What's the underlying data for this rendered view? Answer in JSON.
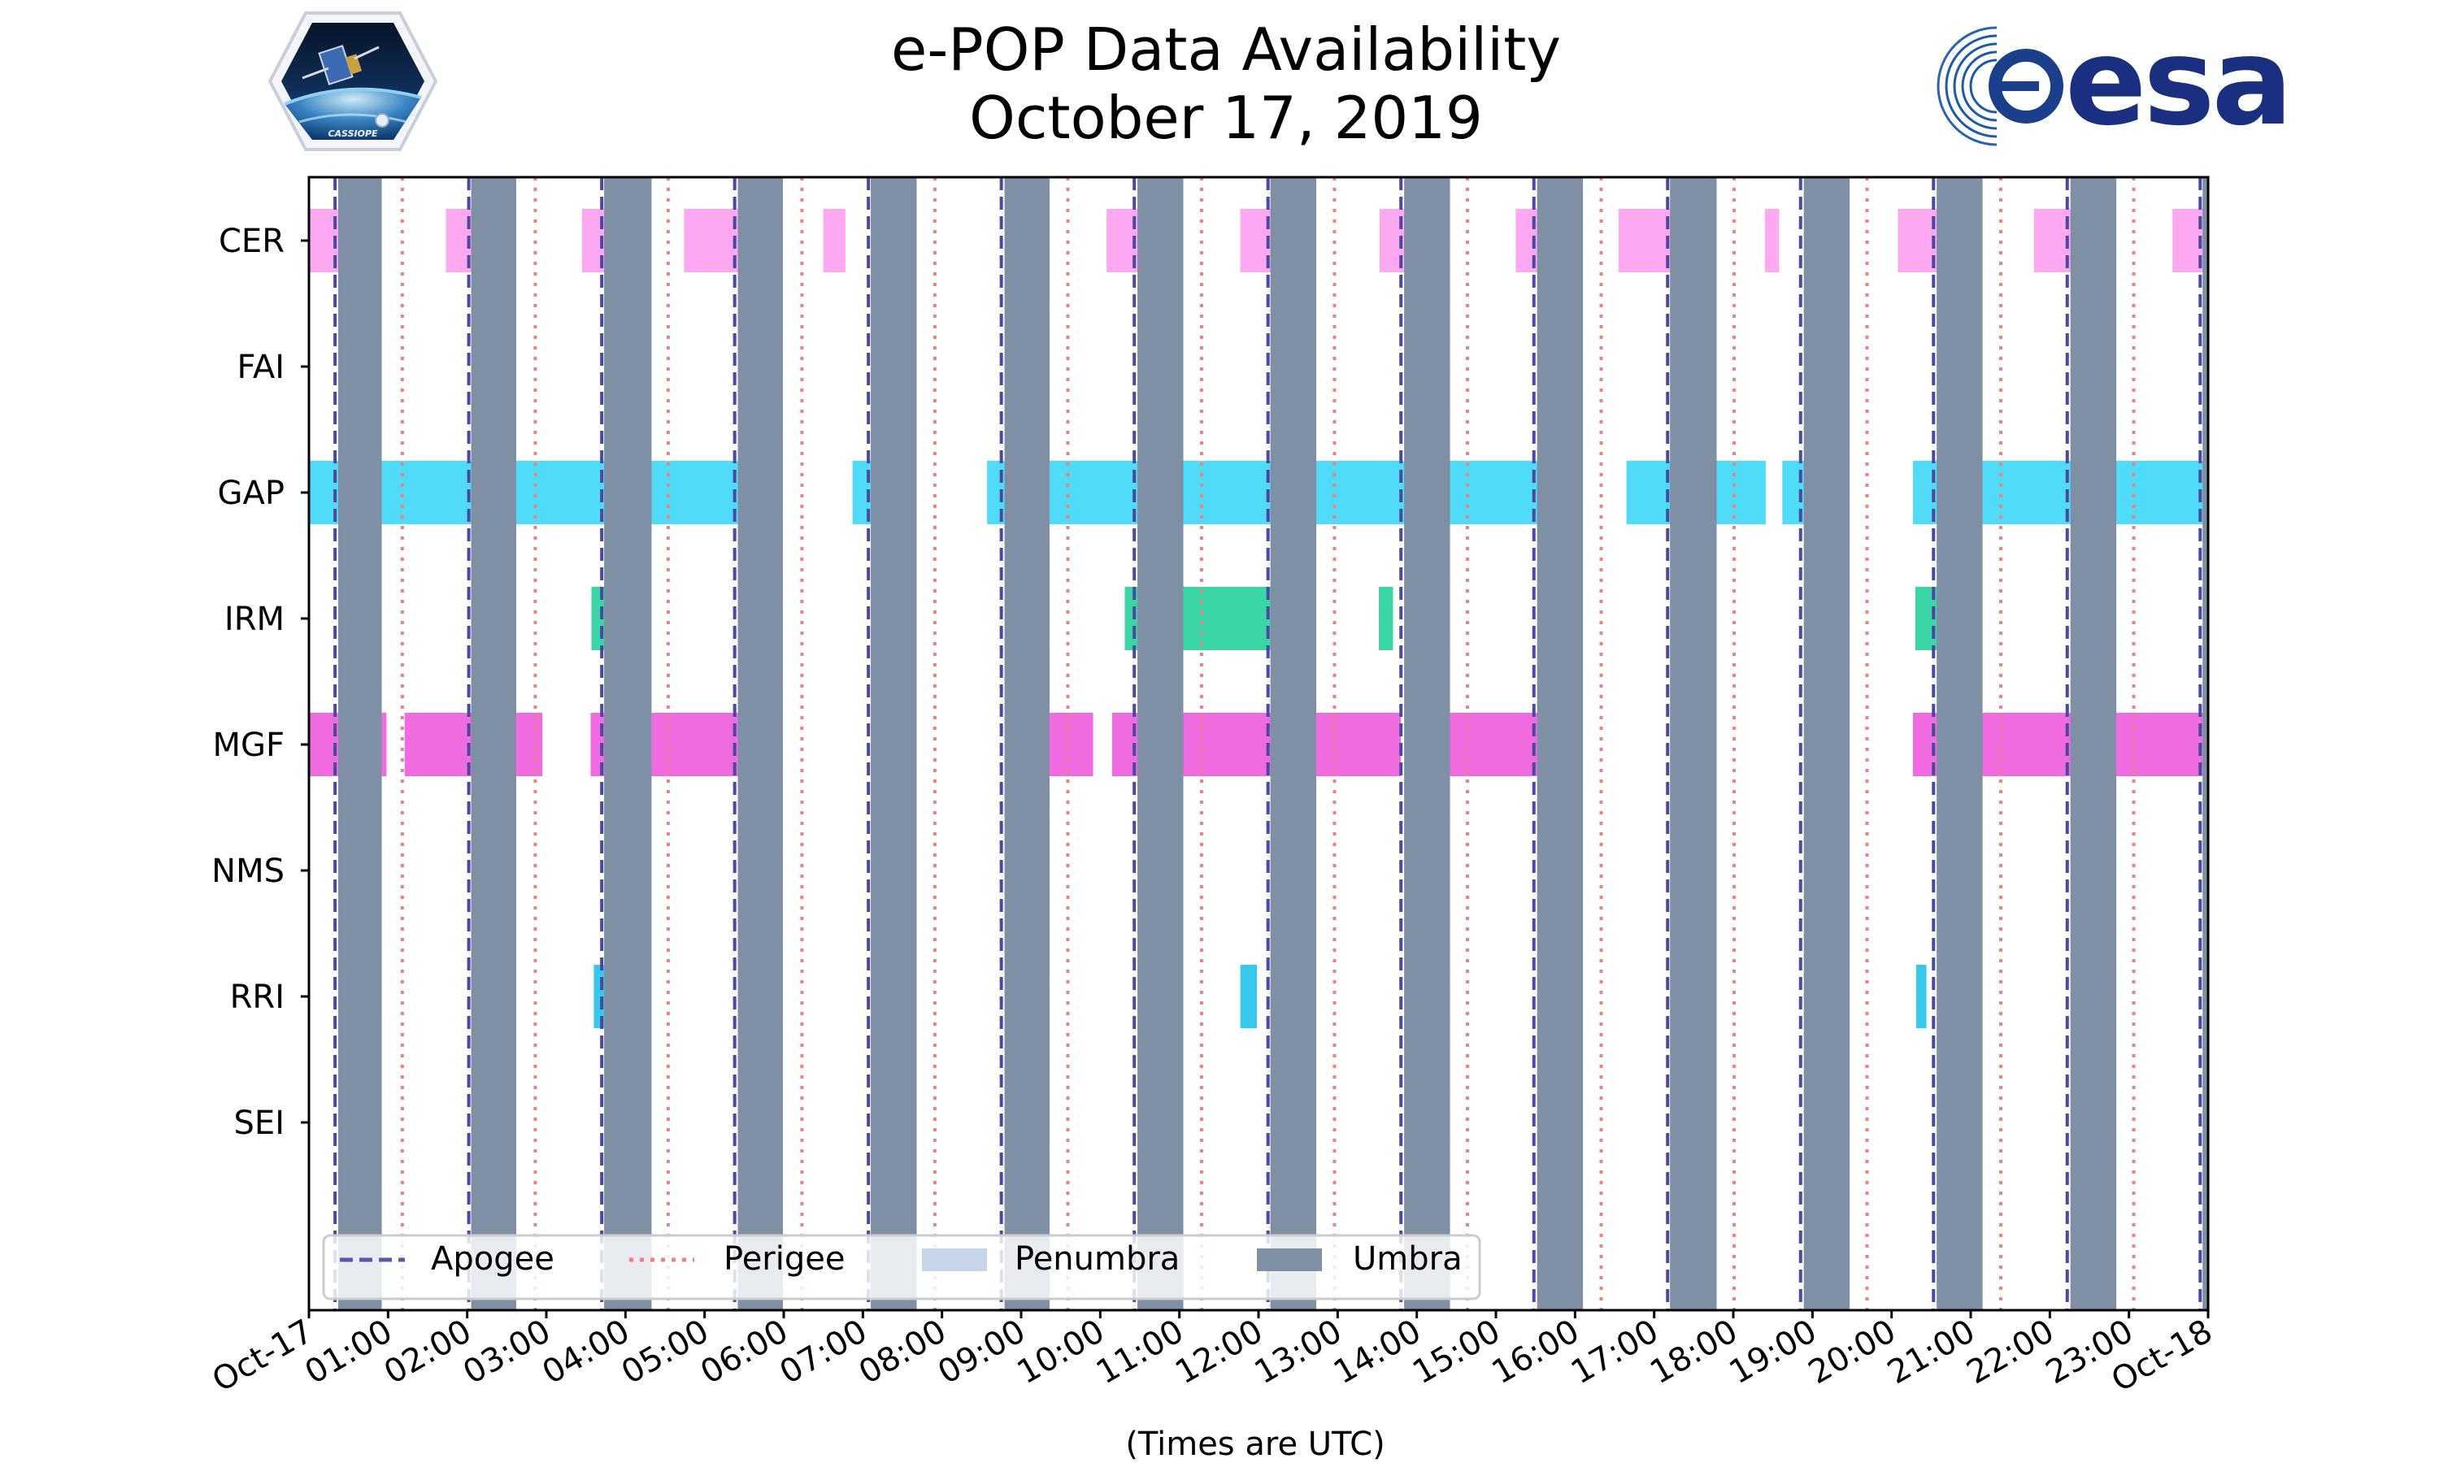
{
  "chart_data": {
    "type": "timeline",
    "title": "e-POP Data Availability",
    "subtitle": "October 17, 2019",
    "xlabel": "(Times are UTC)",
    "x_unit": "hours UTC",
    "xlim": [
      0,
      24
    ],
    "x_tick_labels": [
      "Oct-17",
      "01:00",
      "02:00",
      "03:00",
      "04:00",
      "05:00",
      "06:00",
      "07:00",
      "08:00",
      "09:00",
      "10:00",
      "11:00",
      "12:00",
      "13:00",
      "14:00",
      "15:00",
      "16:00",
      "17:00",
      "18:00",
      "19:00",
      "20:00",
      "21:00",
      "22:00",
      "23:00",
      "Oct-18"
    ],
    "instruments": [
      "CER",
      "FAI",
      "GAP",
      "IRM",
      "MGF",
      "NMS",
      "RRI",
      "SEI"
    ],
    "legend": {
      "placement": "bottom-left",
      "entries": [
        {
          "label": "Apogee",
          "style": "dashed",
          "color": "#5a58a8"
        },
        {
          "label": "Perigee",
          "style": "dotted",
          "color": "#f08080"
        },
        {
          "label": "Penumbra",
          "style": "patch",
          "color": "#c6d5e8"
        },
        {
          "label": "Umbra",
          "style": "patch",
          "color": "#8090a4"
        }
      ]
    },
    "apogee_hours": [
      0.33,
      2.02,
      3.7,
      5.38,
      7.07,
      8.75,
      10.43,
      12.12,
      13.8,
      15.48,
      17.17,
      18.85,
      20.53,
      22.22,
      23.9
    ],
    "perigee_hours": [
      1.18,
      2.86,
      4.54,
      6.23,
      7.91,
      9.59,
      11.28,
      12.96,
      14.64,
      16.33,
      18.01,
      19.69,
      21.38,
      23.06
    ],
    "umbra_intervals": [
      [
        0.37,
        0.92
      ],
      [
        2.05,
        2.62
      ],
      [
        3.73,
        4.33
      ],
      [
        5.42,
        5.99
      ],
      [
        7.1,
        7.68
      ],
      [
        8.79,
        9.36
      ],
      [
        10.47,
        11.05
      ],
      [
        12.15,
        12.73
      ],
      [
        13.84,
        14.42
      ],
      [
        15.52,
        16.1
      ],
      [
        17.2,
        17.79
      ],
      [
        18.89,
        19.47
      ],
      [
        20.57,
        21.15
      ],
      [
        22.26,
        22.84
      ],
      [
        23.93,
        24.0
      ]
    ],
    "series": [
      {
        "name": "CER",
        "color": "#ff9cf0",
        "intervals": [
          [
            0.0,
            0.46
          ],
          [
            1.73,
            2.12
          ],
          [
            3.45,
            4.26
          ],
          [
            4.74,
            5.98
          ],
          [
            6.5,
            6.78
          ],
          [
            10.08,
            10.73
          ],
          [
            11.77,
            12.22
          ],
          [
            13.53,
            13.92
          ],
          [
            15.25,
            15.62
          ],
          [
            16.55,
            17.77
          ],
          [
            18.4,
            18.58
          ],
          [
            20.08,
            20.83
          ],
          [
            21.8,
            22.55
          ],
          [
            23.55,
            24.0
          ]
        ]
      },
      {
        "name": "FAI",
        "color": "#ff9cf0",
        "intervals": []
      },
      {
        "name": "GAP",
        "color": "#38d6f8",
        "intervals": [
          [
            0.0,
            5.57
          ],
          [
            6.87,
            7.33
          ],
          [
            8.57,
            15.6
          ],
          [
            16.65,
            18.41
          ],
          [
            18.62,
            19.0
          ],
          [
            20.27,
            24.0
          ]
        ]
      },
      {
        "name": "IRM",
        "color": "#20d09a",
        "intervals": [
          [
            3.57,
            3.89
          ],
          [
            10.31,
            10.52
          ],
          [
            10.9,
            12.25
          ],
          [
            12.38,
            12.6
          ],
          [
            13.52,
            13.7
          ],
          [
            20.3,
            20.61
          ]
        ]
      },
      {
        "name": "MGF",
        "color": "#ee55dc",
        "intervals": [
          [
            0.0,
            0.98
          ],
          [
            1.21,
            2.95
          ],
          [
            3.56,
            3.9
          ],
          [
            4.19,
            5.57
          ],
          [
            8.93,
            9.91
          ],
          [
            10.15,
            10.71
          ],
          [
            10.93,
            12.3
          ],
          [
            12.48,
            13.8
          ],
          [
            14.02,
            15.6
          ],
          [
            20.27,
            20.61
          ],
          [
            20.83,
            22.56
          ],
          [
            22.79,
            24.0
          ]
        ]
      },
      {
        "name": "NMS",
        "color": "#ff9cf0",
        "intervals": []
      },
      {
        "name": "RRI",
        "color": "#1ec0e8",
        "intervals": [
          [
            3.6,
            3.73
          ],
          [
            11.77,
            11.98
          ],
          [
            20.31,
            20.44
          ]
        ]
      },
      {
        "name": "SEI",
        "color": "#ff9cf0",
        "intervals": []
      }
    ]
  },
  "logos": {
    "left_caption": "CASSIOPE",
    "right_brand": "esa"
  }
}
